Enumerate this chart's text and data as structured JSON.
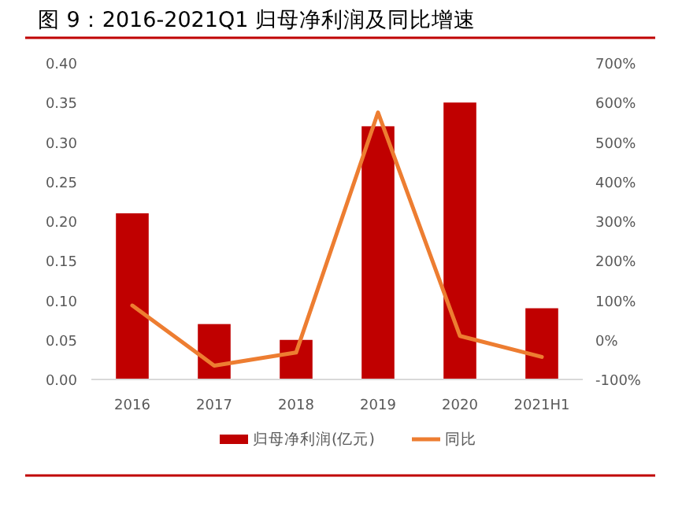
{
  "chart_data": {
    "type": "bar",
    "title": "图 9：2016-2021Q1 归母净利润及同比增速",
    "categories": [
      "2016",
      "2017",
      "2018",
      "2019",
      "2020",
      "2021H1"
    ],
    "series": [
      {
        "name": "归母净利润(亿元)",
        "color": "#c00000",
        "values": [
          0.21,
          0.07,
          0.05,
          0.32,
          0.35,
          0.09
        ]
      },
      {
        "name": "同比",
        "type": "line",
        "axis": "y2",
        "color": "#ed7d31",
        "values": [
          87,
          -65,
          -32,
          575,
          10,
          -43
        ]
      }
    ],
    "ylim": [
      0,
      0.4
    ],
    "yticks": [
      {
        "value": 0,
        "label": "0.00"
      },
      {
        "value": 0.05,
        "label": "0.05"
      },
      {
        "value": 0.1,
        "label": "0.10"
      },
      {
        "value": 0.15,
        "label": "0.15"
      },
      {
        "value": 0.2,
        "label": "0.20"
      },
      {
        "value": 0.25,
        "label": "0.25"
      },
      {
        "value": 0.3,
        "label": "0.30"
      },
      {
        "value": 0.35,
        "label": "0.35"
      },
      {
        "value": 0.4,
        "label": "0.40"
      }
    ],
    "y2lim": [
      -100,
      700
    ],
    "y2ticks": [
      {
        "value": -100,
        "label": "-100%"
      },
      {
        "value": 0,
        "label": "0%"
      },
      {
        "value": 100,
        "label": "100%"
      },
      {
        "value": 200,
        "label": "200%"
      },
      {
        "value": 300,
        "label": "300%"
      },
      {
        "value": 400,
        "label": "400%"
      },
      {
        "value": 500,
        "label": "500%"
      },
      {
        "value": 600,
        "label": "600%"
      },
      {
        "value": 700,
        "label": "700%"
      }
    ],
    "legend": "bottom",
    "grid": false,
    "marker": "none",
    "line_style": "solid"
  }
}
